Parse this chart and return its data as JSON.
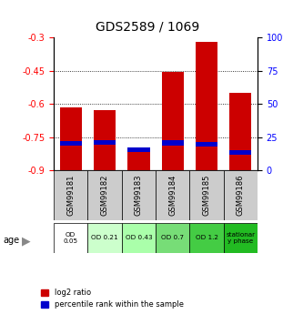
{
  "title": "GDS2589 / 1069",
  "samples": [
    "GSM99181",
    "GSM99182",
    "GSM99183",
    "GSM99184",
    "GSM99185",
    "GSM99186"
  ],
  "log2_ratio": [
    -0.617,
    -0.628,
    -0.81,
    -0.456,
    -0.318,
    -0.548
  ],
  "percentile_rank": [
    0.2,
    0.21,
    0.155,
    0.205,
    0.195,
    0.135
  ],
  "age_labels": [
    "OD\n0.05",
    "OD 0.21",
    "OD 0.43",
    "OD 0.7",
    "OD 1.2",
    "stationar\ny phase"
  ],
  "age_colors": [
    "#ffffff",
    "#ccffcc",
    "#aaffaa",
    "#77dd77",
    "#44cc44",
    "#22bb22"
  ],
  "ylim_left": [
    -0.9,
    -0.3
  ],
  "yticks_left": [
    -0.9,
    -0.75,
    -0.6,
    -0.45,
    -0.3
  ],
  "yticks_right": [
    0,
    25,
    50,
    75,
    100
  ],
  "bar_color": "#cc0000",
  "percentile_color": "#0000cc",
  "bar_width": 0.65,
  "title_fontsize": 10
}
